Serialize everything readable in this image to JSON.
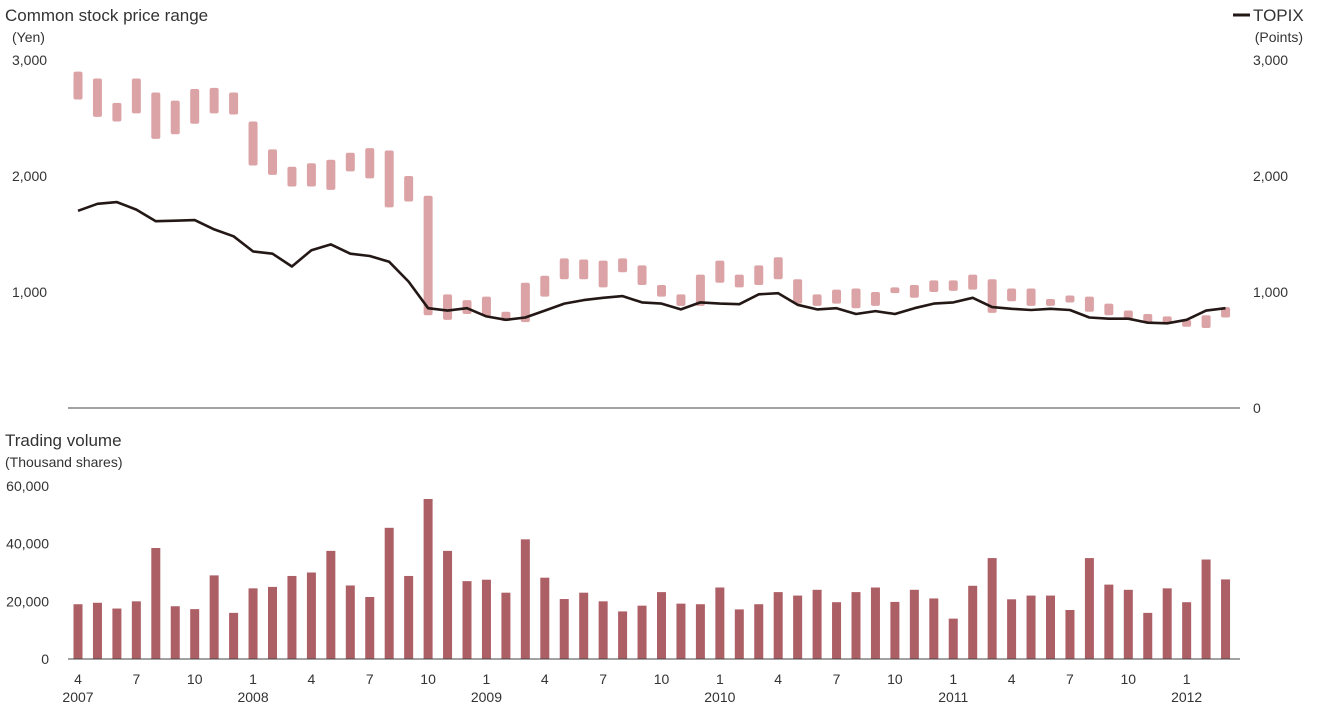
{
  "chart_data": [
    {
      "type": "range-bar-line",
      "title": "Common stock price range",
      "ylabel": "(Yen)",
      "ylabel_right": "(Points)",
      "legend": {
        "label": "TOPIX",
        "placement": "top-right"
      },
      "ylim": [
        0,
        3000
      ],
      "yticks": [
        "3,000",
        "2,000",
        "1,000"
      ],
      "yticks_right": [
        "3,000",
        "2,000",
        "1,000",
        "0"
      ],
      "price_ranges": [
        [
          2660,
          2900
        ],
        [
          2510,
          2840
        ],
        [
          2470,
          2630
        ],
        [
          2540,
          2840
        ],
        [
          2320,
          2720
        ],
        [
          2360,
          2650
        ],
        [
          2450,
          2750
        ],
        [
          2540,
          2760
        ],
        [
          2530,
          2720
        ],
        [
          2090,
          2470
        ],
        [
          2010,
          2230
        ],
        [
          1910,
          2080
        ],
        [
          1910,
          2110
        ],
        [
          1880,
          2140
        ],
        [
          2040,
          2200
        ],
        [
          1980,
          2240
        ],
        [
          1730,
          2220
        ],
        [
          1780,
          2000
        ],
        [
          800,
          1830
        ],
        [
          760,
          980
        ],
        [
          810,
          930
        ],
        [
          790,
          960
        ],
        [
          750,
          830
        ],
        [
          740,
          1080
        ],
        [
          960,
          1140
        ],
        [
          1110,
          1290
        ],
        [
          1110,
          1280
        ],
        [
          1040,
          1270
        ],
        [
          1170,
          1290
        ],
        [
          1060,
          1230
        ],
        [
          960,
          1060
        ],
        [
          880,
          980
        ],
        [
          880,
          1150
        ],
        [
          1080,
          1270
        ],
        [
          1040,
          1150
        ],
        [
          1060,
          1230
        ],
        [
          1110,
          1300
        ],
        [
          900,
          1110
        ],
        [
          880,
          980
        ],
        [
          900,
          1020
        ],
        [
          860,
          1030
        ],
        [
          880,
          1000
        ],
        [
          990,
          1040
        ],
        [
          950,
          1060
        ],
        [
          1000,
          1100
        ],
        [
          1010,
          1100
        ],
        [
          1020,
          1150
        ],
        [
          820,
          1110
        ],
        [
          920,
          1030
        ],
        [
          880,
          1030
        ],
        [
          880,
          940
        ],
        [
          910,
          970
        ],
        [
          830,
          960
        ],
        [
          800,
          900
        ],
        [
          770,
          840
        ],
        [
          730,
          810
        ],
        [
          730,
          790
        ],
        [
          700,
          760
        ],
        [
          690,
          800
        ],
        [
          780,
          870
        ]
      ],
      "topix": [
        1700,
        1760,
        1775,
        1710,
        1610,
        1615,
        1620,
        1540,
        1480,
        1350,
        1330,
        1220,
        1360,
        1410,
        1330,
        1310,
        1260,
        1090,
        860,
        840,
        860,
        790,
        760,
        780,
        840,
        900,
        930,
        950,
        965,
        910,
        900,
        850,
        910,
        900,
        895,
        980,
        990,
        890,
        850,
        860,
        810,
        835,
        810,
        860,
        900,
        910,
        950,
        870,
        855,
        845,
        855,
        845,
        780,
        770,
        770,
        735,
        730,
        760,
        840,
        860
      ],
      "colors": {
        "range": "#dba3a5",
        "topix": "#231815"
      }
    },
    {
      "type": "bar",
      "title": "Trading volume",
      "ylabel": "(Thousand shares)",
      "ylim": [
        0,
        60000
      ],
      "yticks": [
        "60,000",
        "40,000",
        "20,000",
        "0"
      ],
      "values": [
        19000,
        19500,
        17500,
        20000,
        38500,
        18300,
        17300,
        29000,
        16000,
        24500,
        25000,
        28800,
        30000,
        37500,
        25500,
        21500,
        45500,
        28800,
        55500,
        37500,
        27000,
        27500,
        23000,
        41500,
        28200,
        20800,
        23000,
        20000,
        16500,
        18500,
        23200,
        19200,
        19000,
        24800,
        17200,
        19000,
        23200,
        22000,
        24000,
        19700,
        23200,
        24800,
        19800,
        24000,
        21000,
        14000,
        25400,
        35000,
        20700,
        22000,
        22000,
        17000,
        35000,
        25800,
        24000,
        16000,
        24500,
        19700,
        34500,
        27600
      ],
      "colors": {
        "bar": "#ad5f66"
      }
    }
  ],
  "x_axis": {
    "month_labels": [
      "4",
      "7",
      "10",
      "1",
      "4",
      "7",
      "10",
      "1",
      "4",
      "7",
      "10",
      "1",
      "4",
      "7",
      "10",
      "1",
      "4",
      "7",
      "10",
      "1"
    ],
    "year_labels": [
      "2007",
      "2008",
      "2009",
      "2010",
      "2011",
      "2012"
    ]
  }
}
